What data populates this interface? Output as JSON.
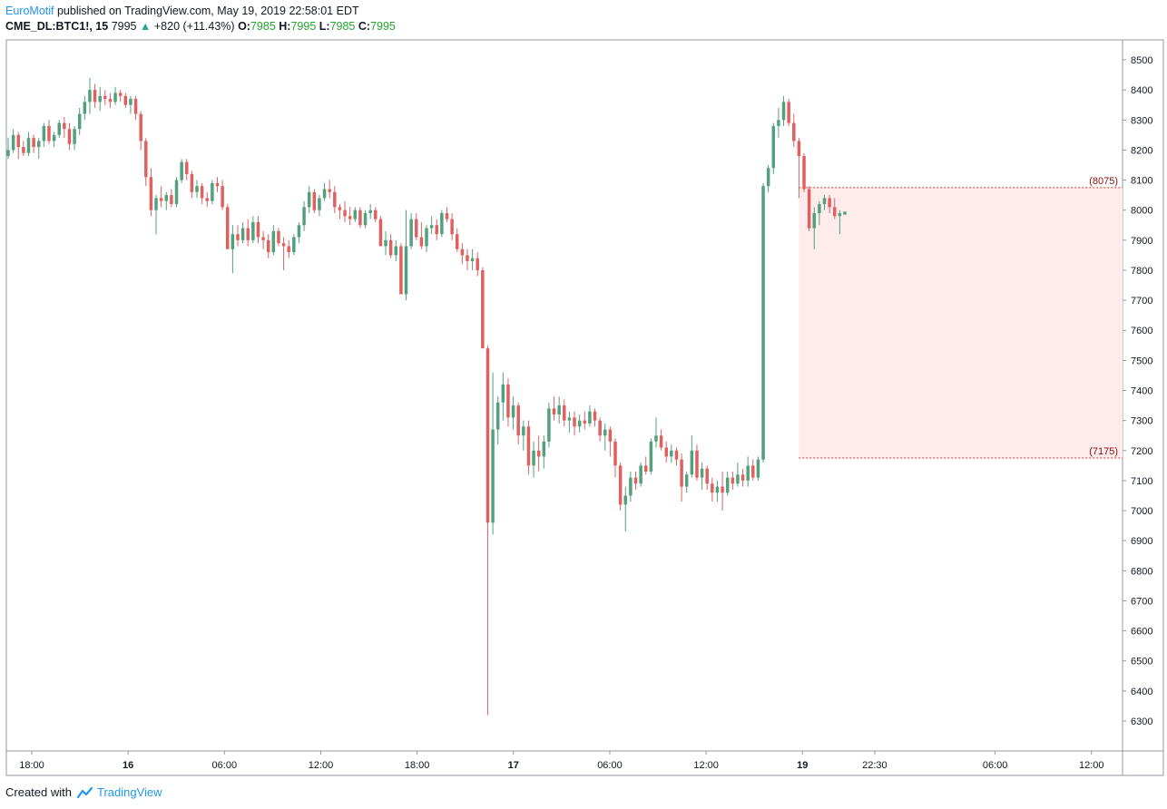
{
  "header": {
    "author": "EuroMotif",
    "published_text": "published on TradingView.com, May 19, 2019 22:58:01 EDT",
    "symbol": "CME_DL:BTC1!, 15",
    "last": "7995",
    "change": "+820 (+11.43%)",
    "o_label": "O:",
    "o_value": "7985",
    "h_label": "H:",
    "h_value": "7995",
    "l_label": "L:",
    "l_value": "7985",
    "c_label": "C:",
    "c_value": "7995"
  },
  "footer": {
    "created_with": "Created with",
    "brand": "TradingView"
  },
  "colors": {
    "up": "#53a07f",
    "down": "#e06060",
    "zone_fill": "#fdeceb",
    "zone_line": "#c0392b",
    "grid_border": "#9598a1"
  },
  "chart_data": {
    "type": "candlestick",
    "ylim": [
      6200,
      8550
    ],
    "y_ticks": [
      6300,
      6400,
      6500,
      6600,
      6700,
      6800,
      6900,
      7000,
      7100,
      7200,
      7300,
      7400,
      7500,
      7600,
      7700,
      7800,
      7900,
      8000,
      8100,
      8200,
      8300,
      8400,
      8500
    ],
    "x_ticks": [
      {
        "label": "18:00",
        "bold": false,
        "t": 1
      },
      {
        "label": "16",
        "bold": true,
        "t": 5
      },
      {
        "label": "06:00",
        "bold": false,
        "t": 9
      },
      {
        "label": "12:00",
        "bold": false,
        "t": 13
      },
      {
        "label": "18:00",
        "bold": false,
        "t": 17
      },
      {
        "label": "17",
        "bold": true,
        "t": 21
      },
      {
        "label": "06:00",
        "bold": false,
        "t": 25
      },
      {
        "label": "12:00",
        "bold": false,
        "t": 29
      },
      {
        "label": "19",
        "bold": true,
        "t": 33
      },
      {
        "label": "22:30",
        "bold": false,
        "t": 36
      },
      {
        "label": "06:00",
        "bold": false,
        "t": 41
      },
      {
        "label": "12:00",
        "bold": false,
        "t": 45
      }
    ],
    "price_zones": [
      {
        "label": "(8075)",
        "value": 8075
      },
      {
        "label": "(7175)",
        "value": 7175
      }
    ],
    "zone_start_t": 32.85,
    "candle_interval": "15",
    "candles_ohlc": [
      [
        8180,
        8240,
        8170,
        8200
      ],
      [
        8200,
        8270,
        8190,
        8250
      ],
      [
        8250,
        8260,
        8170,
        8210
      ],
      [
        8210,
        8230,
        8180,
        8190
      ],
      [
        8190,
        8260,
        8180,
        8240
      ],
      [
        8240,
        8250,
        8190,
        8210
      ],
      [
        8210,
        8240,
        8170,
        8230
      ],
      [
        8230,
        8290,
        8210,
        8280
      ],
      [
        8280,
        8300,
        8220,
        8230
      ],
      [
        8230,
        8260,
        8210,
        8250
      ],
      [
        8250,
        8300,
        8240,
        8290
      ],
      [
        8290,
        8310,
        8240,
        8270
      ],
      [
        8270,
        8290,
        8200,
        8220
      ],
      [
        8220,
        8280,
        8200,
        8270
      ],
      [
        8270,
        8340,
        8250,
        8320
      ],
      [
        8320,
        8380,
        8300,
        8360
      ],
      [
        8360,
        8440,
        8320,
        8400
      ],
      [
        8400,
        8420,
        8340,
        8360
      ],
      [
        8360,
        8410,
        8330,
        8380
      ],
      [
        8380,
        8400,
        8350,
        8370
      ],
      [
        8370,
        8390,
        8340,
        8360
      ],
      [
        8360,
        8410,
        8350,
        8390
      ],
      [
        8390,
        8400,
        8360,
        8380
      ],
      [
        8380,
        8390,
        8340,
        8350
      ],
      [
        8350,
        8380,
        8320,
        8370
      ],
      [
        8370,
        8380,
        8300,
        8320
      ],
      [
        8320,
        8330,
        8200,
        8230
      ],
      [
        8230,
        8240,
        8080,
        8110
      ],
      [
        8110,
        8140,
        7980,
        8000
      ],
      [
        8000,
        8050,
        7920,
        8040
      ],
      [
        8040,
        8080,
        8010,
        8030
      ],
      [
        8030,
        8060,
        8000,
        8050
      ],
      [
        8050,
        8070,
        8010,
        8020
      ],
      [
        8020,
        8110,
        8010,
        8100
      ],
      [
        8100,
        8170,
        8090,
        8160
      ],
      [
        8160,
        8170,
        8100,
        8120
      ],
      [
        8120,
        8130,
        8040,
        8060
      ],
      [
        8060,
        8100,
        8040,
        8080
      ],
      [
        8080,
        8090,
        8020,
        8040
      ],
      [
        8040,
        8060,
        8010,
        8030
      ],
      [
        8030,
        8100,
        8020,
        8090
      ],
      [
        8090,
        8110,
        8060,
        8080
      ],
      [
        8080,
        8100,
        8000,
        8010
      ],
      [
        8010,
        8020,
        7880,
        7870
      ],
      [
        7870,
        7950,
        7790,
        7920
      ],
      [
        7920,
        7950,
        7880,
        7900
      ],
      [
        7900,
        7960,
        7890,
        7940
      ],
      [
        7940,
        7970,
        7880,
        7900
      ],
      [
        7900,
        7980,
        7890,
        7960
      ],
      [
        7960,
        7980,
        7890,
        7910
      ],
      [
        7910,
        7930,
        7870,
        7900
      ],
      [
        7900,
        7920,
        7840,
        7860
      ],
      [
        7860,
        7950,
        7850,
        7930
      ],
      [
        7930,
        7940,
        7880,
        7890
      ],
      [
        7890,
        7910,
        7800,
        7880
      ],
      [
        7880,
        7900,
        7840,
        7860
      ],
      [
        7860,
        7920,
        7850,
        7910
      ],
      [
        7910,
        7960,
        7890,
        7950
      ],
      [
        7950,
        8030,
        7930,
        8010
      ],
      [
        8010,
        8080,
        7990,
        8060
      ],
      [
        8060,
        8070,
        7990,
        8000
      ],
      [
        8000,
        8050,
        7980,
        8040
      ],
      [
        8040,
        8090,
        8030,
        8070
      ],
      [
        8070,
        8100,
        8040,
        8060
      ],
      [
        8060,
        8080,
        7990,
        8010
      ],
      [
        8010,
        8020,
        7970,
        8000
      ],
      [
        8000,
        8030,
        7960,
        7980
      ],
      [
        7980,
        8010,
        7950,
        7970
      ],
      [
        7970,
        8010,
        7960,
        8000
      ],
      [
        8000,
        8010,
        7940,
        7950
      ],
      [
        7950,
        8000,
        7940,
        7990
      ],
      [
        7990,
        8020,
        7970,
        8000
      ],
      [
        8000,
        8010,
        7960,
        7970
      ],
      [
        7970,
        7980,
        7900,
        7880
      ],
      [
        7880,
        7930,
        7850,
        7900
      ],
      [
        7900,
        7920,
        7840,
        7850
      ],
      [
        7850,
        7900,
        7830,
        7880
      ],
      [
        7880,
        7890,
        7810,
        7720
      ],
      [
        7720,
        8000,
        7700,
        7880
      ],
      [
        7880,
        7990,
        7870,
        7970
      ],
      [
        7970,
        7990,
        7900,
        7910
      ],
      [
        7910,
        7960,
        7870,
        7880
      ],
      [
        7880,
        7950,
        7860,
        7940
      ],
      [
        7940,
        7980,
        7920,
        7950
      ],
      [
        7950,
        7970,
        7900,
        7920
      ],
      [
        7920,
        8000,
        7910,
        7990
      ],
      [
        7990,
        8010,
        7960,
        7970
      ],
      [
        7970,
        7990,
        7900,
        7920
      ],
      [
        7920,
        7940,
        7860,
        7870
      ],
      [
        7870,
        7890,
        7820,
        7850
      ],
      [
        7850,
        7870,
        7800,
        7830
      ],
      [
        7830,
        7870,
        7800,
        7840
      ],
      [
        7840,
        7860,
        7780,
        7800
      ],
      [
        7800,
        7810,
        7600,
        7540
      ],
      [
        7540,
        7550,
        6320,
        6960
      ],
      [
        6960,
        7460,
        6920,
        7270
      ],
      [
        7270,
        7380,
        7220,
        7360
      ],
      [
        7360,
        7460,
        7300,
        7420
      ],
      [
        7420,
        7440,
        7280,
        7310
      ],
      [
        7310,
        7380,
        7270,
        7350
      ],
      [
        7350,
        7360,
        7220,
        7250
      ],
      [
        7250,
        7300,
        7200,
        7280
      ],
      [
        7280,
        7300,
        7120,
        7150
      ],
      [
        7150,
        7230,
        7110,
        7200
      ],
      [
        7200,
        7250,
        7130,
        7180
      ],
      [
        7180,
        7250,
        7140,
        7230
      ],
      [
        7230,
        7360,
        7210,
        7340
      ],
      [
        7340,
        7380,
        7300,
        7320
      ],
      [
        7320,
        7380,
        7290,
        7350
      ],
      [
        7350,
        7370,
        7280,
        7300
      ],
      [
        7300,
        7330,
        7260,
        7310
      ],
      [
        7310,
        7330,
        7250,
        7280
      ],
      [
        7280,
        7320,
        7260,
        7300
      ],
      [
        7300,
        7330,
        7270,
        7290
      ],
      [
        7290,
        7350,
        7280,
        7330
      ],
      [
        7330,
        7340,
        7280,
        7300
      ],
      [
        7300,
        7310,
        7230,
        7250
      ],
      [
        7250,
        7290,
        7200,
        7270
      ],
      [
        7270,
        7280,
        7180,
        7230
      ],
      [
        7230,
        7240,
        7110,
        7150
      ],
      [
        7150,
        7160,
        7000,
        7020
      ],
      [
        7020,
        7080,
        6930,
        7050
      ],
      [
        7050,
        7130,
        7030,
        7110
      ],
      [
        7110,
        7130,
        7070,
        7090
      ],
      [
        7090,
        7160,
        7080,
        7150
      ],
      [
        7150,
        7180,
        7120,
        7130
      ],
      [
        7130,
        7240,
        7120,
        7230
      ],
      [
        7230,
        7310,
        7210,
        7250
      ],
      [
        7250,
        7270,
        7200,
        7210
      ],
      [
        7210,
        7230,
        7160,
        7180
      ],
      [
        7180,
        7220,
        7160,
        7200
      ],
      [
        7200,
        7210,
        7150,
        7170
      ],
      [
        7170,
        7190,
        7030,
        7080
      ],
      [
        7080,
        7130,
        7060,
        7120
      ],
      [
        7120,
        7250,
        7110,
        7200
      ],
      [
        7200,
        7220,
        7100,
        7110
      ],
      [
        7110,
        7160,
        7070,
        7140
      ],
      [
        7140,
        7150,
        7070,
        7090
      ],
      [
        7090,
        7110,
        7030,
        7060
      ],
      [
        7060,
        7100,
        7030,
        7080
      ],
      [
        7080,
        7130,
        7000,
        7060
      ],
      [
        7060,
        7130,
        7050,
        7110
      ],
      [
        7110,
        7130,
        7070,
        7090
      ],
      [
        7090,
        7160,
        7080,
        7120
      ],
      [
        7120,
        7140,
        7080,
        7100
      ],
      [
        7100,
        7180,
        7080,
        7150
      ],
      [
        7150,
        7170,
        7100,
        7110
      ],
      [
        7110,
        7180,
        7100,
        7170
      ],
      [
        7170,
        8090,
        7160,
        8080
      ],
      [
        8080,
        8150,
        8060,
        8140
      ],
      [
        8140,
        8290,
        8120,
        8280
      ],
      [
        8280,
        8340,
        8240,
        8300
      ],
      [
        8300,
        8380,
        8280,
        8360
      ],
      [
        8360,
        8370,
        8280,
        8290
      ],
      [
        8290,
        8320,
        8210,
        8230
      ],
      [
        8230,
        8240,
        8040,
        8180
      ],
      [
        8180,
        8190,
        8060,
        8070
      ],
      [
        8070,
        8080,
        7930,
        7940
      ],
      [
        7940,
        8010,
        7870,
        7990
      ],
      [
        7990,
        8030,
        7950,
        8020
      ],
      [
        8020,
        8050,
        8000,
        8040
      ],
      [
        8040,
        8050,
        7990,
        8010
      ],
      [
        8010,
        8040,
        7970,
        7980
      ],
      [
        7980,
        8000,
        7920,
        7990
      ],
      [
        7985,
        7995,
        7985,
        7995
      ]
    ]
  }
}
